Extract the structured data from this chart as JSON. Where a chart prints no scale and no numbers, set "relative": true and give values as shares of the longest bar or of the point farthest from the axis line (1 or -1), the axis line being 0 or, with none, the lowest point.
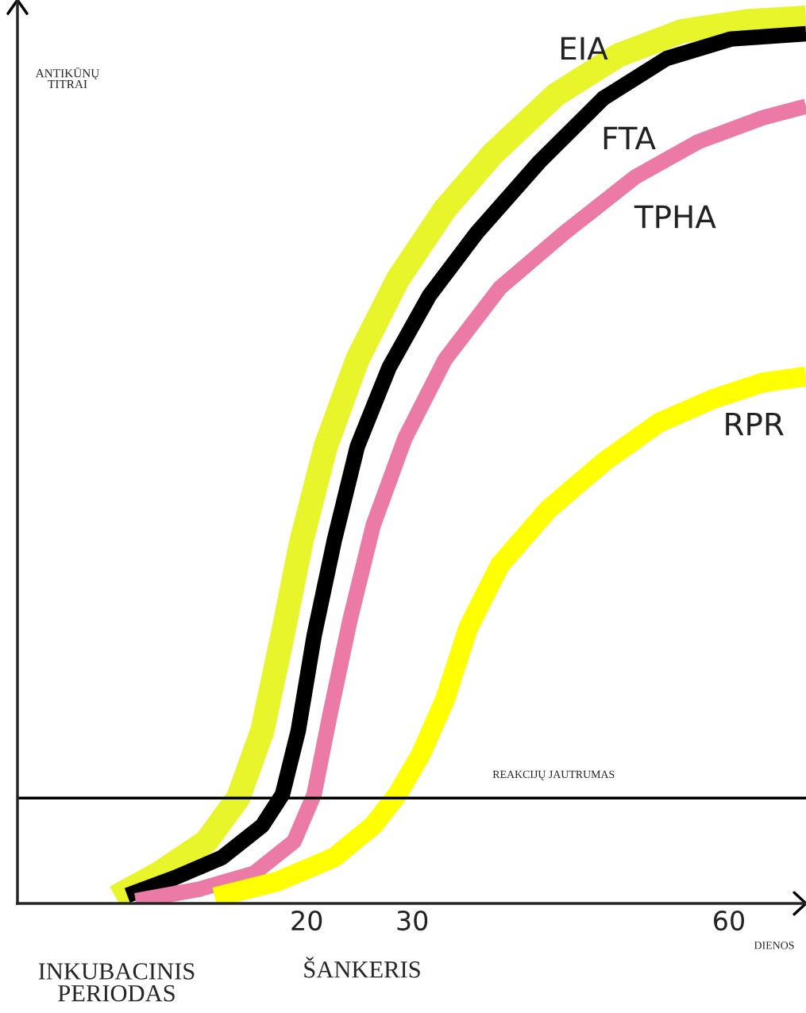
{
  "chart_data": {
    "type": "line",
    "relative": true,
    "ylabel": "ANTIKŪNŲ\nTITRAI",
    "xlabel": "DIENOS",
    "xlim": [
      -7.4,
      67.3
    ],
    "xticks": [
      20,
      30,
      60
    ],
    "grid": false,
    "legend": false,
    "marker": "none",
    "line_style": "solid",
    "annotations": [
      "INKUBACINIS\nPERIODAS",
      "ŠANKERIS"
    ],
    "ref_lines": [
      {
        "axis": "y",
        "value": 0.119,
        "label": "REAKCIJŲ JAUTRUMAS",
        "color": "#000000"
      }
    ],
    "series": [
      {
        "name": "EIA",
        "color": "#e8f52a",
        "x": [
          1.9,
          6.0,
          10.5,
          13.5,
          15.8,
          17.7,
          19.5,
          21.8,
          24.8,
          28.6,
          33.1,
          37.6,
          43.6,
          49.6,
          55.6,
          61.7,
          67.3
        ],
        "values": [
          0.007,
          0.034,
          0.07,
          0.119,
          0.195,
          0.302,
          0.409,
          0.516,
          0.614,
          0.704,
          0.784,
          0.846,
          0.913,
          0.958,
          0.985,
          0.996,
          1.0
        ]
      },
      {
        "name": "FTA",
        "color": "#000000",
        "x": [
          3.0,
          7.5,
          12.0,
          15.8,
          17.7,
          19.2,
          20.7,
          22.6,
          24.8,
          27.8,
          31.6,
          36.1,
          42.1,
          48.1,
          54.1,
          60.2,
          67.3
        ],
        "values": [
          0.009,
          0.029,
          0.052,
          0.088,
          0.123,
          0.195,
          0.302,
          0.409,
          0.516,
          0.605,
          0.686,
          0.757,
          0.838,
          0.909,
          0.954,
          0.976,
          0.982
        ]
      },
      {
        "name": "TPHA",
        "color": "#ec7aa6",
        "x": [
          3.8,
          9.8,
          15.0,
          18.8,
          20.7,
          22.2,
          24.1,
          26.3,
          29.3,
          33.1,
          38.3,
          44.4,
          51.1,
          57.1,
          63.2,
          67.3
        ],
        "values": [
          0.003,
          0.016,
          0.034,
          0.07,
          0.123,
          0.213,
          0.32,
          0.427,
          0.525,
          0.614,
          0.695,
          0.757,
          0.82,
          0.86,
          0.887,
          0.9
        ]
      },
      {
        "name": "RPR",
        "color": "#ffff00",
        "x": [
          11.3,
          17.3,
          22.6,
          26.3,
          28.6,
          30.8,
          33.1,
          35.3,
          38.3,
          42.9,
          48.1,
          53.4,
          58.6,
          63.2,
          67.3
        ],
        "values": [
          0.007,
          0.025,
          0.052,
          0.088,
          0.123,
          0.168,
          0.23,
          0.311,
          0.382,
          0.445,
          0.498,
          0.543,
          0.57,
          0.588,
          0.595
        ]
      }
    ]
  }
}
